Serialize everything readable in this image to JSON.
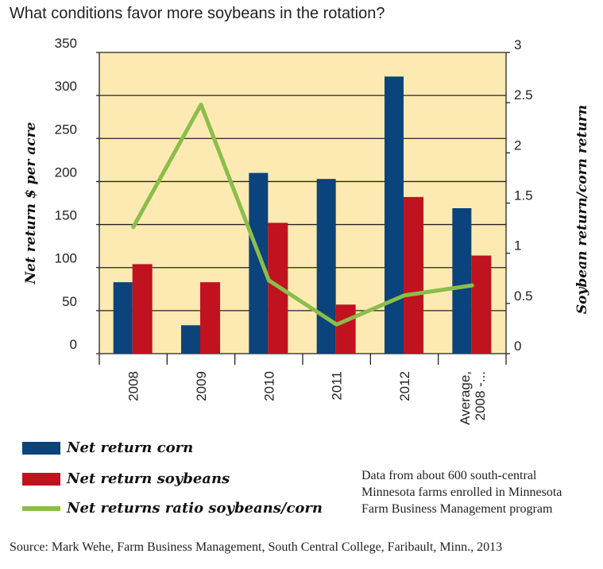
{
  "chart_data": {
    "type": "bar",
    "title": "What conditions favor more soybeans in the rotation?",
    "categories": [
      "2008",
      "2009",
      "2010",
      "2011",
      "2012",
      "Average, 2008 -..."
    ],
    "series": [
      {
        "name": "Net return corn",
        "type": "bar",
        "axis": "left",
        "color": "#0b437c",
        "values": [
          83,
          33,
          210,
          203,
          322,
          169
        ]
      },
      {
        "name": "Net return soybeans",
        "type": "bar",
        "axis": "left",
        "color": "#c1121f",
        "values": [
          104,
          83,
          152,
          57,
          182,
          114
        ]
      },
      {
        "name": "Net returns ratio soybeans/corn",
        "type": "line",
        "axis": "right",
        "color": "#8bbd4b",
        "values": [
          1.26,
          2.48,
          0.73,
          0.29,
          0.58,
          0.68
        ]
      }
    ],
    "ylabel": "Net return $ per acre",
    "ylim": [
      0,
      350
    ],
    "yticks": [
      "0",
      "50",
      "100",
      "150",
      "200",
      "250",
      "300",
      "350"
    ],
    "y2label": "Soybean return/corn return",
    "y2lim": [
      0,
      3
    ],
    "y2ticks": [
      "0",
      "0.5",
      "1",
      "1.5",
      "2",
      "2.5",
      "3"
    ],
    "grid": true,
    "plot_background": "#fdeab2",
    "legend_placement": "bottom-left"
  },
  "note": [
    "Data from about 600 south-central",
    "Minnesota farms enrolled in Minnesota",
    "Farm Business Management program"
  ],
  "source": "Source: Mark Wehe, Farm Business Management, South Central College, Faribault, Minn., 2013"
}
